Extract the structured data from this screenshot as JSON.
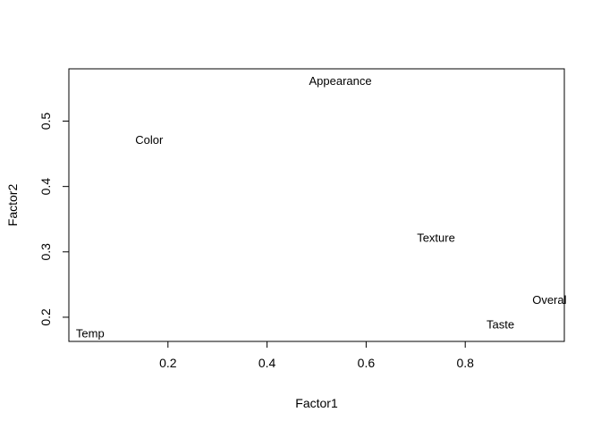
{
  "chart_data": {
    "type": "scatter",
    "title": "",
    "xlabel": "Factor1",
    "ylabel": "Factor2",
    "xlim": [
      0.0,
      1.0
    ],
    "ylim": [
      0.163,
      0.58
    ],
    "x_ticks": [
      0.2,
      0.4,
      0.6,
      0.8
    ],
    "y_ticks": [
      0.2,
      0.3,
      0.4,
      0.5
    ],
    "grid": false,
    "points": [
      {
        "label": "Appearance",
        "x": 0.548,
        "y": 0.562
      },
      {
        "label": "Color",
        "x": 0.162,
        "y": 0.472
      },
      {
        "label": "Texture",
        "x": 0.741,
        "y": 0.322
      },
      {
        "label": "Overal",
        "x": 0.97,
        "y": 0.227
      },
      {
        "label": "Taste",
        "x": 0.871,
        "y": 0.19
      },
      {
        "label": "Temp",
        "x": 0.043,
        "y": 0.176
      }
    ]
  }
}
